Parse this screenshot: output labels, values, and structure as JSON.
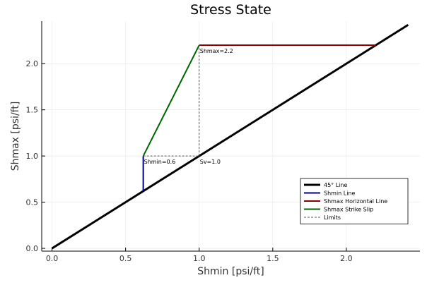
{
  "chart_data": {
    "type": "line",
    "title": "Stress State",
    "xlabel": "Shmin [psi/ft]",
    "ylabel": "Shmax [psi/ft]",
    "xlim": [
      -0.07,
      2.5
    ],
    "ylim": [
      -0.03,
      2.46
    ],
    "xticks": [
      0.0,
      0.5,
      1.0,
      1.5,
      2.0
    ],
    "yticks": [
      0.0,
      0.5,
      1.0,
      1.5,
      2.0
    ],
    "xtick_labels": [
      "0.0",
      "0.5",
      "1.0",
      "1.5",
      "2.0"
    ],
    "ytick_labels": [
      "0.0",
      "0.5",
      "1.0",
      "1.5",
      "2.0"
    ],
    "grid": true,
    "legend_position": "bottom-right",
    "series": [
      {
        "name": "45° Line",
        "color": "#000000",
        "dash": "solid",
        "width": 3,
        "x": [
          0.0,
          2.42
        ],
        "y": [
          0.0,
          2.42
        ]
      },
      {
        "name": "Shmin Line",
        "color": "#00008b",
        "dash": "solid",
        "width": 2,
        "x": [
          0.62,
          0.62
        ],
        "y": [
          0.62,
          1.0
        ]
      },
      {
        "name": "Shmax Horizontal Line",
        "color": "#8b0000",
        "dash": "solid",
        "width": 2,
        "x": [
          1.0,
          2.2
        ],
        "y": [
          2.2,
          2.2
        ]
      },
      {
        "name": "Shmax Strike Slip",
        "color": "#006400",
        "dash": "solid",
        "width": 2,
        "x": [
          0.62,
          1.0
        ],
        "y": [
          1.0,
          2.2
        ]
      },
      {
        "name": "Limits",
        "color": "#555555",
        "dash": "dashed",
        "width": 1,
        "segments": [
          {
            "x": [
              0.62,
              1.0
            ],
            "y": [
              1.0,
              1.0
            ]
          },
          {
            "x": [
              1.0,
              1.0
            ],
            "y": [
              1.0,
              2.2
            ]
          }
        ]
      }
    ],
    "annotations": [
      {
        "text": "Shmin=0.6",
        "x": 0.62,
        "y": 0.97
      },
      {
        "text": "Sv=1.0",
        "x": 1.0,
        "y": 0.97
      },
      {
        "text": "Shmax=2.2",
        "x": 1.0,
        "y": 2.17
      }
    ]
  }
}
